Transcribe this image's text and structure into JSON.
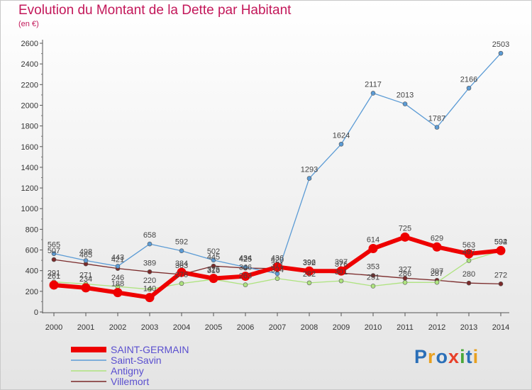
{
  "chart_data": {
    "type": "line",
    "title": "Evolution du Montant de la Dette par Habitant",
    "subtitle": "(en €)",
    "x": [
      "2000",
      "2001",
      "2002",
      "2003",
      "2004",
      "2005",
      "2006",
      "2007",
      "2008",
      "2009",
      "2010",
      "2011",
      "2012",
      "2013",
      "2014"
    ],
    "ylim": [
      0,
      2600
    ],
    "yticks": [
      0,
      200,
      400,
      600,
      800,
      1000,
      1200,
      1400,
      1600,
      1800,
      2000,
      2200,
      2400,
      2600
    ],
    "grid": false,
    "legend_position": "bottom-left",
    "series": [
      {
        "name": "SAINT-GERMAIN",
        "color": "#ee0000",
        "values": [
          261,
          234,
          188,
          140,
          384,
          325,
          346,
          436,
          396,
          397,
          614,
          725,
          629,
          563,
          594
        ]
      },
      {
        "name": "Saint-Savin",
        "color": "#5b9bd5",
        "values": [
          565,
          498,
          443,
          658,
          592,
          502,
          434,
          371,
          1293,
          1624,
          2117,
          2013,
          1787,
          2166,
          2503
        ]
      },
      {
        "name": "Antigny",
        "color": "#aee37f",
        "values": [
          291,
          271,
          246,
          220,
          276,
          316,
          263,
          324,
          282,
          301,
          251,
          286,
          287,
          497,
          592
        ]
      },
      {
        "name": "Villemort",
        "color": "#7a2a2a",
        "values": [
          507,
          465,
          421,
          389,
          363,
          445,
          425,
          420,
          392,
          376,
          353,
          327,
          307,
          280,
          272
        ]
      }
    ]
  },
  "logo": {
    "text": "Proxiti",
    "colors": [
      "#2a6fb8",
      "#e8a020",
      "#2a6fb8",
      "#e8402a",
      "#4aa83a",
      "#2a6fb8",
      "#e8a020"
    ]
  }
}
